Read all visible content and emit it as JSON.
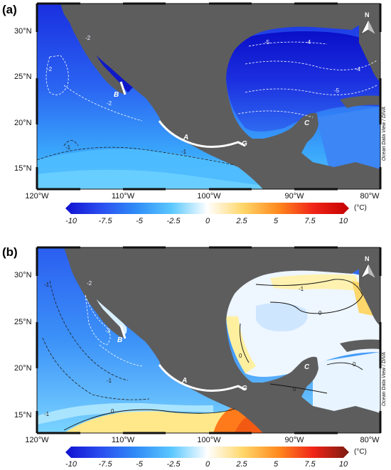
{
  "panels": [
    {
      "id": "a",
      "label": "(a)",
      "lat_labels": [
        "30°N",
        "25°N",
        "20°N",
        "15°N"
      ],
      "lon_labels": [
        "120°W",
        "110°W",
        "100°W",
        "90°W",
        "80°W"
      ],
      "sites": [
        "A",
        "B",
        "C",
        "G"
      ],
      "contours": [
        "-1",
        "-1",
        "-2",
        "-2",
        "-4",
        "-4",
        "-5",
        "-5",
        "-2"
      ],
      "credit": "Ocean Data View / DIVA",
      "north": "N"
    },
    {
      "id": "b",
      "label": "(b)",
      "lat_labels": [
        "30°N",
        "25°N",
        "20°N",
        "15°N"
      ],
      "lon_labels": [
        "120°W",
        "110°W",
        "100°W",
        "90°W",
        "80°W"
      ],
      "sites": [
        "A",
        "B",
        "C",
        "G"
      ],
      "contours": [
        "-1",
        "-1",
        "-1",
        "-3",
        "-2",
        "0",
        "0",
        "0",
        "0",
        "0",
        "-1"
      ],
      "credit": "Ocean Data View / DIVA",
      "north": "N"
    }
  ],
  "colorbar": {
    "ticks": [
      "-10",
      "-7.5",
      "-5",
      "-2.5",
      "0",
      "2.5",
      "5",
      "7.5",
      "10"
    ],
    "unit": "(°C)",
    "colors": [
      "#1010d0",
      "#2a4ef0",
      "#2f8cf7",
      "#5bc8ff",
      "#ffffff",
      "#ffd76a",
      "#ff8a1e",
      "#f02418",
      "#c40000"
    ]
  },
  "map_colors": {
    "land": "#5d5d5d",
    "coast_route": "#ffffff"
  }
}
